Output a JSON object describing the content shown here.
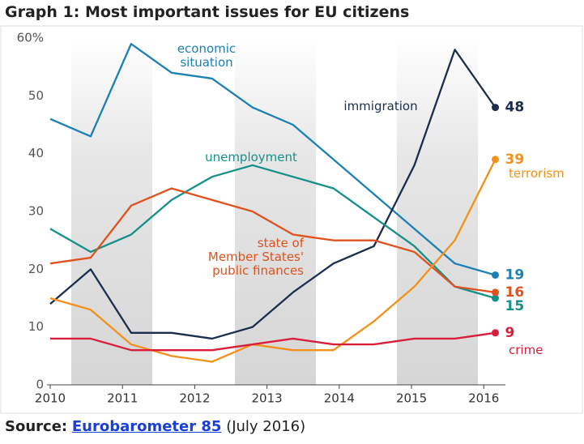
{
  "chart_data": {
    "type": "line",
    "title": "Graph 1: Most important issues for EU citizens",
    "x": [
      2010,
      2010.56,
      2011.12,
      2011.68,
      2012.24,
      2012.8,
      2013.36,
      2013.92,
      2014.48,
      2015.04,
      2015.6,
      2016.16
    ],
    "xlim": [
      2010,
      2016.3
    ],
    "xticks": [
      2010,
      2011,
      2012,
      2013,
      2014,
      2015,
      2016
    ],
    "ylim": [
      0,
      60
    ],
    "yticks": [
      0,
      10,
      20,
      30,
      40,
      50,
      {
        "value": 60,
        "label": "60%"
      }
    ],
    "series": [
      {
        "name": "economic situation",
        "color": "#1a80b5",
        "values": [
          46,
          43,
          59,
          54,
          53,
          48,
          45,
          39,
          33,
          27,
          21,
          19
        ]
      },
      {
        "name": "immigration",
        "color": "#1b2e4f",
        "values": [
          14,
          20,
          9,
          9,
          8,
          10,
          16,
          21,
          24,
          38,
          58,
          48
        ]
      },
      {
        "name": "unemployment",
        "color": "#13908a",
        "values": [
          27,
          23,
          26,
          32,
          36,
          38,
          36,
          34,
          29,
          24,
          17,
          15
        ]
      },
      {
        "name": "state of Member States' public finances",
        "color": "#e0521d",
        "values": [
          21,
          22,
          31,
          34,
          32,
          30,
          26,
          25,
          25,
          23,
          17,
          16
        ]
      },
      {
        "name": "terrorism",
        "color": "#f39019",
        "values": [
          15,
          13,
          7,
          5,
          4,
          7,
          6,
          6,
          11,
          17,
          25,
          39
        ]
      },
      {
        "name": "crime",
        "color": "#d91e3c",
        "values": [
          8,
          8,
          6,
          6,
          6,
          7,
          8,
          7,
          7,
          8,
          8,
          9
        ]
      }
    ],
    "source": {
      "label": "Source:",
      "link": "Eurobarometer 85",
      "date": "(July 2016)"
    }
  }
}
